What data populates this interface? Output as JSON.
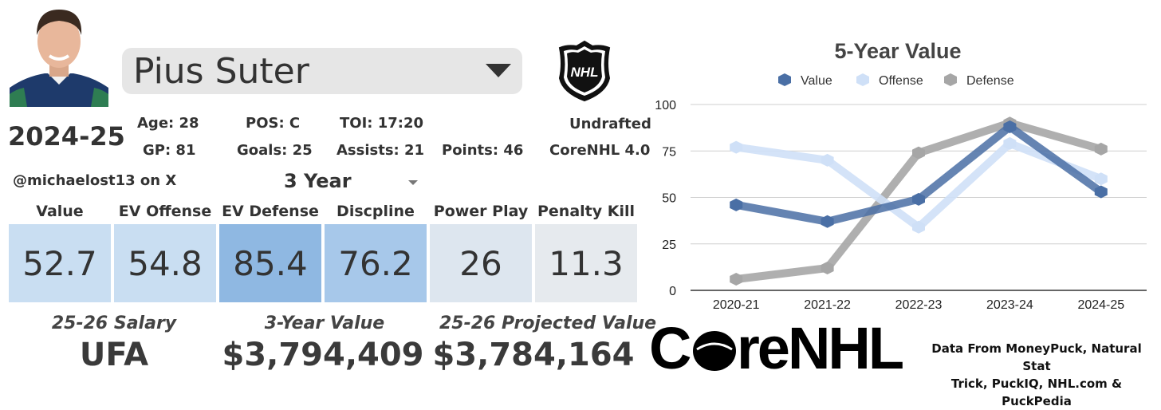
{
  "player": {
    "name": "Pius Suter"
  },
  "season": "2024-25",
  "bio": {
    "age": "Age: 28",
    "pos": "POS: C",
    "toi": "TOI: 17:20",
    "draft": "Undrafted",
    "gp": "GP: 81",
    "goals": "Goals: 25",
    "assists": "Assists: 21",
    "points": "Points: 46",
    "model": "CoreNHL 4.0"
  },
  "author_handle": "@michaelost13 on X",
  "period_select": {
    "value": "3 Year"
  },
  "metrics": [
    {
      "label": "Value",
      "value": "52.7",
      "color": "#c9def2"
    },
    {
      "label": "EV Offense",
      "value": "54.8",
      "color": "#c9def2"
    },
    {
      "label": "EV Defense",
      "value": "85.4",
      "color": "#8fb8e2"
    },
    {
      "label": "Discpline",
      "value": "76.2",
      "color": "#a7c8ea"
    },
    {
      "label": "Power Play",
      "value": "26",
      "color": "#dde6ef"
    },
    {
      "label": "Penalty Kill",
      "value": "11.3",
      "color": "#e6eaee"
    }
  ],
  "financials": {
    "salary_label": "25-26 Salary",
    "salary_value": "UFA",
    "value3_label": "3-Year Value",
    "value3_value": "$3,794,409",
    "projected_label": "25-26 Projected Value",
    "projected_value": "$3,784,164"
  },
  "chart_data": {
    "type": "line",
    "title": "5-Year Value",
    "categories": [
      "2020-21",
      "2021-22",
      "2022-23",
      "2023-24",
      "2024-25"
    ],
    "ylim": [
      0,
      100
    ],
    "yticks": [
      0,
      25,
      50,
      75,
      100
    ],
    "grid": true,
    "legend": "top",
    "series": [
      {
        "name": "Value",
        "values": [
          46,
          37,
          49,
          88,
          53
        ],
        "color": "#4a6fa5"
      },
      {
        "name": "Offense",
        "values": [
          77,
          70,
          34,
          79,
          60
        ],
        "color": "#cfe0f7"
      },
      {
        "name": "Defense",
        "values": [
          6,
          12,
          74,
          90,
          76
        ],
        "color": "#a6a6a6"
      }
    ]
  },
  "brand": {
    "logo_text": "CoreNHL",
    "league_logo": "NHL"
  },
  "source_note": {
    "line1": "Data From MoneyPuck, Natural Stat",
    "line2": "Trick, PuckIQ, NHL.com & PuckPedia"
  }
}
